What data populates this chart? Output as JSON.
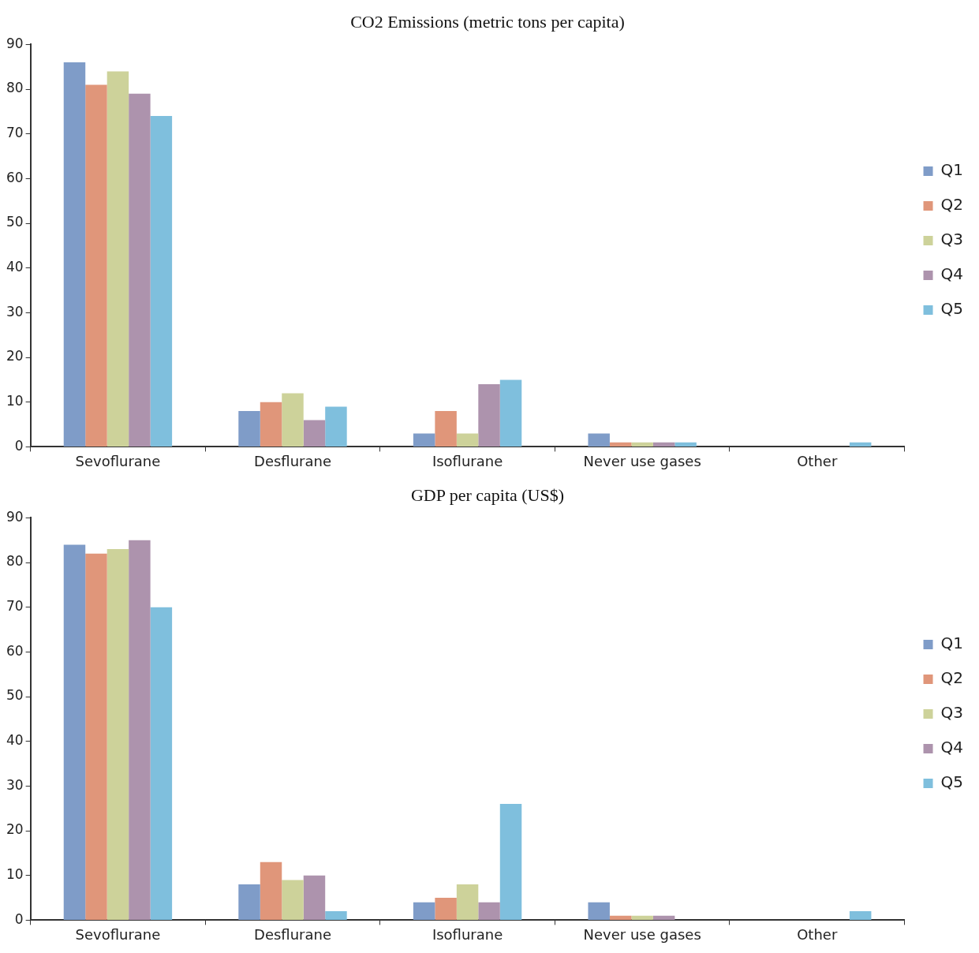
{
  "chart_data": [
    {
      "type": "bar",
      "title": "CO2 Emissions (metric tons per capita)",
      "categories": [
        "Sevoflurane",
        "Desflurane",
        "Isoflurane",
        "Never use gases",
        "Other"
      ],
      "ylim": [
        0,
        90
      ],
      "yticks": [
        0,
        10,
        20,
        30,
        40,
        50,
        60,
        70,
        80,
        90
      ],
      "legend": "right",
      "series": [
        {
          "name": "Q1",
          "color": "#7f9cc8",
          "values": [
            86,
            8,
            3,
            3,
            0
          ]
        },
        {
          "name": "Q2",
          "color": "#e0967a",
          "values": [
            81,
            10,
            8,
            1,
            0
          ]
        },
        {
          "name": "Q3",
          "color": "#cdd29a",
          "values": [
            84,
            12,
            3,
            1,
            0
          ]
        },
        {
          "name": "Q4",
          "color": "#ad93ad",
          "values": [
            79,
            6,
            14,
            1,
            0
          ]
        },
        {
          "name": "Q5",
          "color": "#7fbfdd",
          "values": [
            74,
            9,
            15,
            1,
            1
          ]
        }
      ]
    },
    {
      "type": "bar",
      "title": "GDP per capita (US$)",
      "categories": [
        "Sevoflurane",
        "Desflurane",
        "Isoflurane",
        "Never use gases",
        "Other"
      ],
      "ylim": [
        0,
        90
      ],
      "yticks": [
        0,
        10,
        20,
        30,
        40,
        50,
        60,
        70,
        80,
        90
      ],
      "legend": "right",
      "series": [
        {
          "name": "Q1",
          "color": "#7f9cc8",
          "values": [
            84,
            8,
            4,
            4,
            0
          ]
        },
        {
          "name": "Q2",
          "color": "#e0967a",
          "values": [
            82,
            13,
            5,
            1,
            0
          ]
        },
        {
          "name": "Q3",
          "color": "#cdd29a",
          "values": [
            83,
            9,
            8,
            1,
            0
          ]
        },
        {
          "name": "Q4",
          "color": "#ad93ad",
          "values": [
            85,
            10,
            4,
            1,
            0
          ]
        },
        {
          "name": "Q5",
          "color": "#7fbfdd",
          "values": [
            70,
            2,
            26,
            0,
            2
          ]
        }
      ]
    }
  ]
}
